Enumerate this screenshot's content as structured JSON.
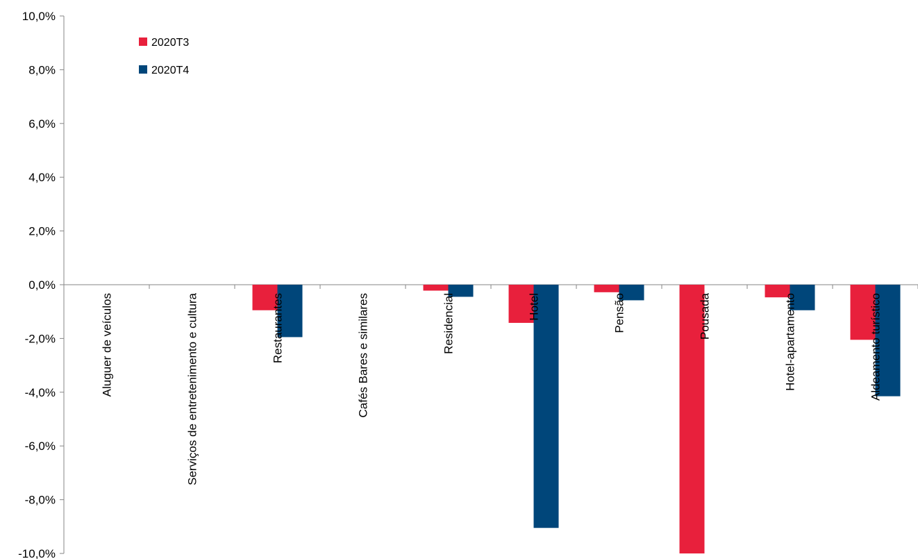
{
  "chart_data": {
    "type": "bar",
    "categories": [
      "Aluguer de veículos",
      "Serviços de entretenimento e cultura",
      "Restaurantes",
      "Cafés Bares e similares",
      "Residencial",
      "Hotel",
      "Pensão",
      "Pousada",
      "Hotel-apartamento",
      "Aldeamento turístico"
    ],
    "series": [
      {
        "name": "2020T3",
        "color": "#e8203c",
        "values": [
          0,
          0,
          -0.95,
          0,
          -0.22,
          -1.42,
          -0.28,
          -10.0,
          -0.47,
          -2.05
        ]
      },
      {
        "name": "2020T4",
        "color": "#00467a",
        "values": [
          0,
          0,
          -1.95,
          0,
          -0.45,
          -9.05,
          -0.58,
          0,
          -0.95,
          -4.15
        ]
      }
    ],
    "ylim": [
      -10,
      10
    ],
    "yticks": [
      10,
      8,
      6,
      4,
      2,
      0,
      -2,
      -4,
      -6,
      -8,
      -10
    ],
    "ytick_labels": [
      "10,0%",
      "8,0%",
      "6,0%",
      "4,0%",
      "2,0%",
      "0,0%",
      "-2,0%",
      "-4,0%",
      "-6,0%",
      "-8,0%",
      "-10,0%"
    ],
    "title": "",
    "xlabel": "",
    "ylabel": "",
    "legend_position": "top-left",
    "grid": false
  }
}
